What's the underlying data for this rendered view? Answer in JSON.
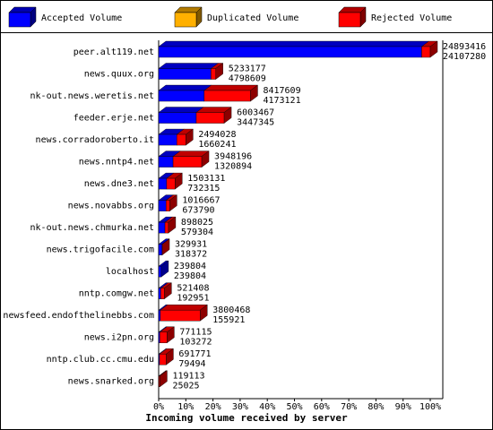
{
  "chart_data": {
    "type": "bar3d-stacked-horizontal",
    "xlabel": "Incoming volume received by server",
    "categories": [
      "peer.alt119.net",
      "news.quux.org",
      "nk-out.news.weretis.net",
      "feeder.erje.net",
      "news.corradoroberto.it",
      "news.nntp4.net",
      "news.dne3.net",
      "news.novabbs.org",
      "nk-out.news.chmurka.net",
      "news.trigofacile.com",
      "localhost",
      "nntp.comgw.net",
      "newsfeed.endofthelinebbs.com",
      "news.i2pn.org",
      "nntp.club.cc.cmu.edu",
      "news.snarked.org"
    ],
    "totals": [
      24893416,
      5233177,
      8417609,
      6003467,
      2494028,
      3948196,
      1503131,
      1016667,
      898025,
      329931,
      239804,
      521408,
      3800468,
      771115,
      691771,
      119113
    ],
    "series": [
      {
        "name": "Accepted Volume",
        "color": "#0000ff",
        "values": [
          24107280,
          4798609,
          4173121,
          3447345,
          1660241,
          1320894,
          732315,
          673790,
          579304,
          318372,
          239804,
          192951,
          155921,
          103272,
          79494,
          25025
        ]
      },
      {
        "name": "Duplicated Volume",
        "color": "#ffb000",
        "values": [
          0,
          0,
          0,
          0,
          0,
          0,
          0,
          0,
          0,
          0,
          0,
          0,
          0,
          0,
          0,
          0
        ]
      },
      {
        "name": "Rejected Volume",
        "color": "#ff0000",
        "values": [
          786136,
          434568,
          4244488,
          2556122,
          833787,
          2627302,
          770816,
          342877,
          318721,
          11559,
          0,
          328457,
          3644547,
          667843,
          612277,
          94088
        ]
      }
    ],
    "xlim": [
      0,
      24893416
    ],
    "xticks": [
      {
        "value": 0,
        "label": "0%"
      },
      {
        "value": 2489341.6,
        "label": "10%"
      },
      {
        "value": 4978683.2,
        "label": "20%"
      },
      {
        "value": 7468024.8,
        "label": "30%"
      },
      {
        "value": 9957366.4,
        "label": "40%"
      },
      {
        "value": 12446708,
        "label": "50%"
      },
      {
        "value": 14936049.6,
        "label": "60%"
      },
      {
        "value": 17425391.2,
        "label": "70%"
      },
      {
        "value": 19914732.8,
        "label": "80%"
      },
      {
        "value": 22404074.4,
        "label": "90%"
      },
      {
        "value": 24893416,
        "label": "100%"
      }
    ]
  }
}
